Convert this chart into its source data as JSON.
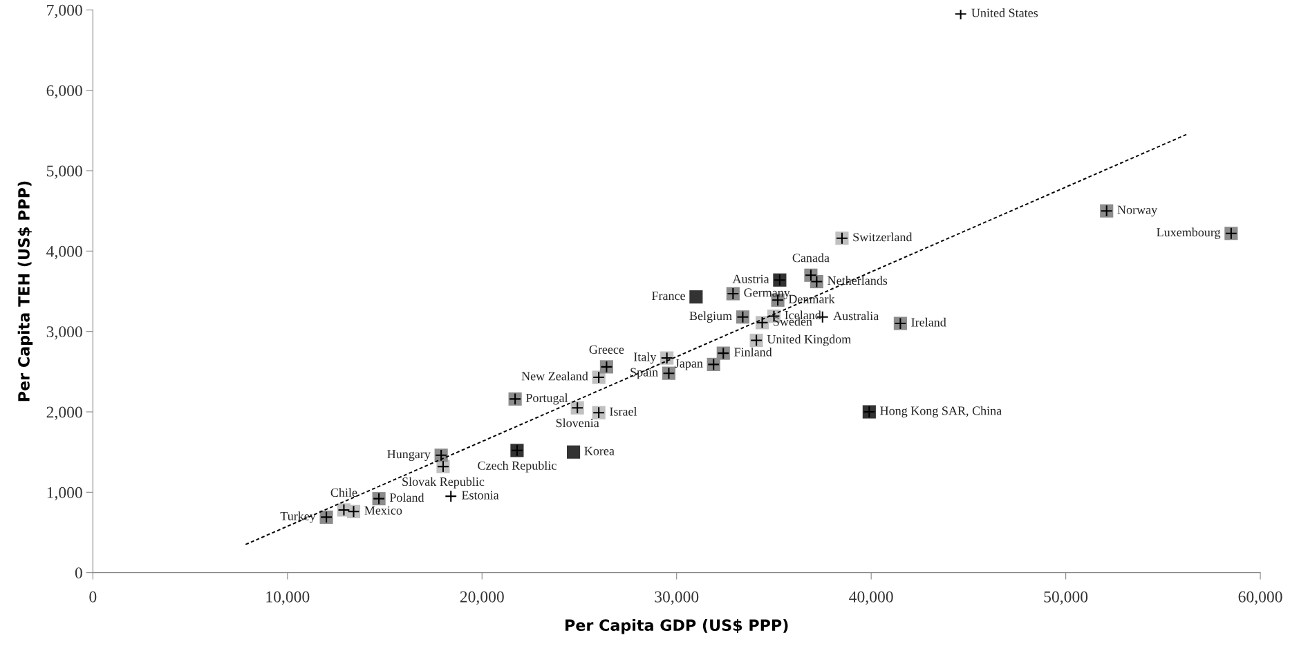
{
  "chart_data": {
    "type": "scatter",
    "xlabel": "Per Capita GDP (US$ PPP)",
    "ylabel": "Per Capita TEH (US$ PPP)",
    "xlim": [
      0,
      60000
    ],
    "ylim": [
      0,
      7000
    ],
    "grid": false,
    "legend": false,
    "xticks": [
      0,
      {
        "value": 10000,
        "label": "10,000"
      },
      {
        "value": 20000,
        "label": "20,000"
      },
      {
        "value": 30000,
        "label": "30,000"
      },
      {
        "value": 40000,
        "label": "40,000"
      },
      {
        "value": 50000,
        "label": "50,000"
      },
      {
        "value": 60000,
        "label": "60,000"
      }
    ],
    "yticks": [
      0,
      {
        "value": 1000,
        "label": "1,000"
      },
      {
        "value": 2000,
        "label": "2,000"
      },
      {
        "value": 3000,
        "label": "3,000"
      },
      {
        "value": 4000,
        "label": "4,000"
      },
      {
        "value": 5000,
        "label": "5,000"
      },
      {
        "value": 6000,
        "label": "6,000"
      },
      {
        "value": 7000,
        "label": "7,000"
      }
    ],
    "series": [
      {
        "marker": "square",
        "color": "#c0c0c0",
        "x": [
          38500,
          35000,
          34400,
          34100,
          29500,
          26000,
          24900,
          26000,
          18000,
          12900,
          13400
        ],
        "values": [
          4160,
          3190,
          3110,
          2890,
          2670,
          2430,
          2050,
          1990,
          1320,
          780,
          760
        ]
      },
      {
        "marker": "square",
        "color": "#8c8c8c",
        "x": [
          52100,
          58500,
          36900,
          37200,
          32900,
          35200,
          33400,
          41500,
          32400,
          31900,
          29600,
          26400,
          21700,
          17900,
          14700,
          12000
        ],
        "values": [
          4500,
          4220,
          3700,
          3620,
          3470,
          3390,
          3180,
          3100,
          2730,
          2590,
          2480,
          2560,
          2160,
          1460,
          920,
          690
        ]
      },
      {
        "marker": "square",
        "color": "#333333",
        "x": [
          35300,
          31000,
          39900,
          21800,
          24700
        ],
        "values": [
          3640,
          3430,
          2000,
          1520,
          1500
        ]
      },
      {
        "marker": "cross",
        "color": "#000000",
        "x": [
          38500,
          35000,
          34400,
          34100,
          29500,
          26000,
          24900,
          26000,
          18000,
          12900,
          13400,
          52100,
          58500,
          36900,
          37200,
          32900,
          35200,
          33400,
          41500,
          32400,
          31900,
          29600,
          26400,
          21700,
          17900,
          14700,
          12000,
          35300,
          39900,
          21800,
          44600,
          18400,
          37500
        ],
        "values": [
          4160,
          3190,
          3110,
          2890,
          2670,
          2430,
          2050,
          1990,
          1320,
          780,
          760,
          4500,
          4220,
          3700,
          3620,
          3470,
          3390,
          3180,
          3100,
          2730,
          2590,
          2480,
          2560,
          2160,
          1460,
          920,
          690,
          3640,
          2000,
          1520,
          6950,
          950,
          3180
        ]
      },
      {
        "type": "line",
        "line_style": "dashed",
        "marker": "none",
        "color": "#000000",
        "x": [
          7850,
          56200
        ],
        "values": [
          350,
          5450
        ]
      }
    ],
    "annotations": [
      {
        "text": "United States",
        "x": 44600,
        "y": 6950
      },
      {
        "text": "Norway",
        "x": 52100,
        "y": 4500
      },
      {
        "text": "Luxembourg",
        "x": 58500,
        "y": 4220
      },
      {
        "text": "Switzerland",
        "x": 38500,
        "y": 4160
      },
      {
        "text": "Canada",
        "x": 36900,
        "y": 3700
      },
      {
        "text": "Netherlands",
        "x": 37200,
        "y": 3620
      },
      {
        "text": "Austria",
        "x": 35300,
        "y": 3640
      },
      {
        "text": "France",
        "x": 31000,
        "y": 3430
      },
      {
        "text": "Germany",
        "x": 32900,
        "y": 3470
      },
      {
        "text": "Denmark",
        "x": 35200,
        "y": 3390
      },
      {
        "text": "Belgium",
        "x": 33400,
        "y": 3180
      },
      {
        "text": "Iceland",
        "x": 35000,
        "y": 3190
      },
      {
        "text": "Australia",
        "x": 37500,
        "y": 3180
      },
      {
        "text": "Sweden",
        "x": 34400,
        "y": 3110
      },
      {
        "text": "Ireland",
        "x": 41500,
        "y": 3100
      },
      {
        "text": "United Kingdom",
        "x": 34100,
        "y": 2890
      },
      {
        "text": "Finland",
        "x": 32400,
        "y": 2730
      },
      {
        "text": "Japan",
        "x": 31900,
        "y": 2590
      },
      {
        "text": "Italy",
        "x": 29500,
        "y": 2670
      },
      {
        "text": "Spain",
        "x": 29600,
        "y": 2480
      },
      {
        "text": "Greece",
        "x": 26400,
        "y": 2560
      },
      {
        "text": "New Zealand",
        "x": 26000,
        "y": 2430
      },
      {
        "text": "Portugal",
        "x": 21700,
        "y": 2160
      },
      {
        "text": "Slovenia",
        "x": 24900,
        "y": 2050
      },
      {
        "text": "Israel",
        "x": 26000,
        "y": 1990
      },
      {
        "text": "Hong Kong SAR, China",
        "x": 39900,
        "y": 2000
      },
      {
        "text": "Czech Republic",
        "x": 21800,
        "y": 1520
      },
      {
        "text": "Korea",
        "x": 24700,
        "y": 1500
      },
      {
        "text": "Hungary",
        "x": 17900,
        "y": 1460
      },
      {
        "text": "Slovak Republic",
        "x": 18000,
        "y": 1320
      },
      {
        "text": "Poland",
        "x": 14700,
        "y": 920
      },
      {
        "text": "Estonia",
        "x": 18400,
        "y": 950
      },
      {
        "text": "Chile",
        "x": 12900,
        "y": 780
      },
      {
        "text": "Mexico",
        "x": 13400,
        "y": 760
      },
      {
        "text": "Turkey",
        "x": 12000,
        "y": 690
      }
    ]
  }
}
